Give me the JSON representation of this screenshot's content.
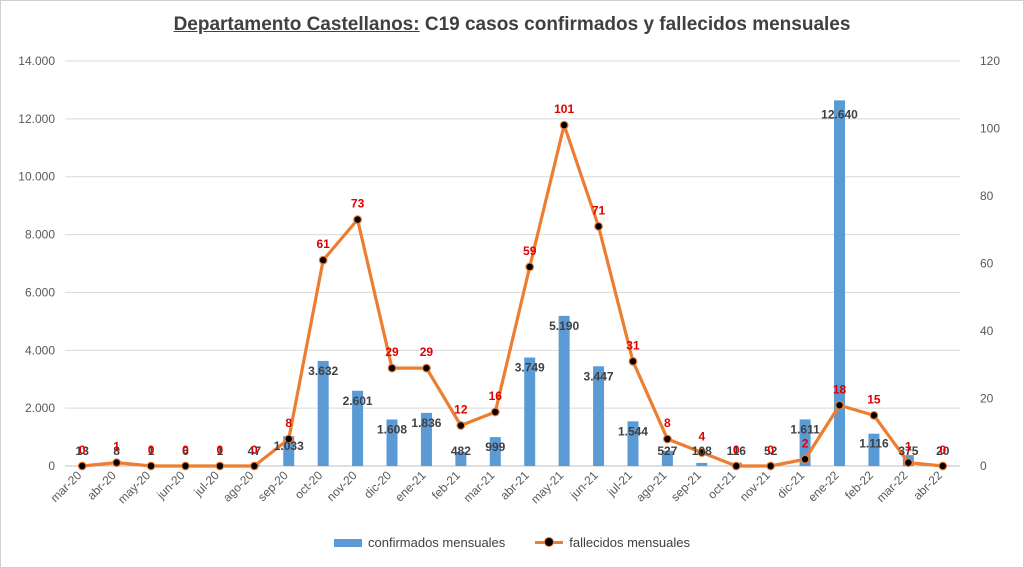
{
  "title": {
    "part1": "Departamento Castellanos:",
    "part2": " C19 casos confirmados y fallecidos mensuales"
  },
  "legend": {
    "bars": "confirmados mensuales",
    "line": "fallecidos mensuales"
  },
  "colors": {
    "bars": "#5b9bd5",
    "line": "#ed7d31",
    "marker": "#000000",
    "line_labels": "#e00000",
    "bar_labels": "#404040",
    "grid": "#d9d9d9"
  },
  "chart_data": {
    "type": "bar+line",
    "title": "Departamento Castellanos: C19 casos confirmados y fallecidos mensuales",
    "categories": [
      "mar-20",
      "abr-20",
      "may-20",
      "jun-20",
      "jul-20",
      "ago-20",
      "sep-20",
      "oct-20",
      "nov-20",
      "dic-20",
      "ene-21",
      "feb-21",
      "mar-21",
      "abr-21",
      "may-21",
      "jun-21",
      "jul-21",
      "ago-21",
      "sep-21",
      "oct-21",
      "nov-21",
      "dic-21",
      "ene-22",
      "feb-22",
      "mar-22",
      "abr-22"
    ],
    "series": [
      {
        "name": "confirmados mensuales",
        "type": "bar",
        "axis": "left",
        "values": [
          13,
          8,
          1,
          6,
          1,
          47,
          1033,
          3632,
          2601,
          1608,
          1836,
          482,
          999,
          3749,
          5190,
          3447,
          1544,
          527,
          108,
          116,
          52,
          1611,
          12640,
          1116,
          375,
          20
        ],
        "labels": [
          "13",
          "8",
          "1",
          "6",
          "1",
          "47",
          "1.033",
          "3.632",
          "2.601",
          "1.608",
          "1.836",
          "482",
          "999",
          "3.749",
          "5.190",
          "3.447",
          "1.544",
          "527",
          "108",
          "116",
          "52",
          "1.611",
          "12.640",
          "1.116",
          "375",
          "20"
        ]
      },
      {
        "name": "fallecidos mensuales",
        "type": "line",
        "axis": "right",
        "values": [
          0,
          1,
          0,
          0,
          0,
          0,
          8,
          61,
          73,
          29,
          29,
          12,
          16,
          59,
          101,
          71,
          31,
          8,
          4,
          0,
          0,
          2,
          18,
          15,
          1,
          0
        ],
        "labels": [
          "0",
          "1",
          "0",
          "0",
          "0",
          "0",
          "8",
          "61",
          "73",
          "29",
          "29",
          "12",
          "16",
          "59",
          "101",
          "71",
          "31",
          "8",
          "4",
          "0",
          "0",
          "2",
          "18",
          "15",
          "1",
          "0"
        ]
      }
    ],
    "y_left": {
      "min": 0,
      "max": 14000,
      "ticks": [
        "0",
        "2.000",
        "4.000",
        "6.000",
        "8.000",
        "10.000",
        "12.000",
        "14.000"
      ]
    },
    "y_right": {
      "min": 0,
      "max": 120,
      "ticks": [
        "0",
        "20",
        "40",
        "60",
        "80",
        "100",
        "120"
      ]
    },
    "grid": true,
    "legend_position": "bottom"
  }
}
